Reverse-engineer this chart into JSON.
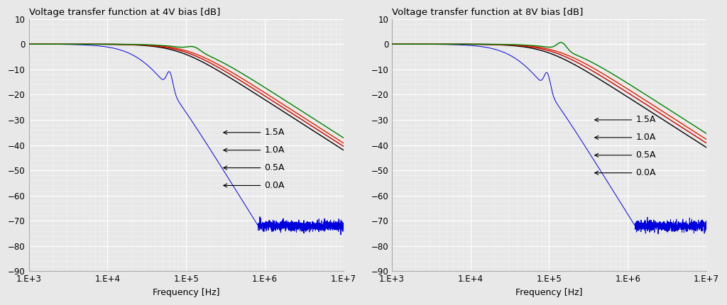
{
  "title_left": "Voltage transfer function at 4V bias [dB]",
  "title_right": "Voltage transfer function at 8V bias [dB]",
  "xlabel": "Frequency [Hz]",
  "bg_color": "#e8e8e8",
  "grid_color": "#ffffff",
  "plot4V": {
    "curves": [
      {
        "label": "0.0A",
        "color": "#000000",
        "fc": 80000,
        "order": 1.0,
        "floor": -63,
        "lw": 1.0
      },
      {
        "label": "0.5A",
        "color": "#cc0000",
        "fc": 95000,
        "order": 1.0,
        "floor": -65,
        "lw": 1.0
      },
      {
        "label": "1.0A",
        "color": "#dd2200",
        "fc": 110000,
        "order": 1.0,
        "floor": -66,
        "lw": 1.0
      },
      {
        "label": "1.5A",
        "color": "#008000",
        "fc": 140000,
        "order": 1.0,
        "floor": -68,
        "lw": 1.0
      }
    ],
    "blue": {
      "color": "#0000dd",
      "fc": 30000,
      "res_f": 62000,
      "res_gain": 7.0,
      "floor": -72,
      "lw": 0.7
    },
    "annotations": [
      {
        "text": "1.5A",
        "data_x": 550000,
        "data_y": -35
      },
      {
        "text": "1.0A",
        "data_x": 550000,
        "data_y": -42
      },
      {
        "text": "0.5A",
        "data_x": 550000,
        "data_y": -49
      },
      {
        "text": "0.0A",
        "data_x": 550000,
        "data_y": -56
      }
    ]
  },
  "plot8V": {
    "curves": [
      {
        "label": "0.0A",
        "color": "#000000",
        "fc": 90000,
        "order": 1.0,
        "floor": -63,
        "lw": 1.0
      },
      {
        "label": "0.5A",
        "color": "#cc0000",
        "fc": 110000,
        "order": 1.0,
        "floor": -65,
        "lw": 1.0
      },
      {
        "label": "1.0A",
        "color": "#dd2200",
        "fc": 130000,
        "order": 1.0,
        "floor": -66,
        "lw": 1.0
      },
      {
        "label": "1.5A",
        "color": "#008000",
        "fc": 170000,
        "order": 1.0,
        "floor": -68,
        "lw": 1.0
      }
    ],
    "blue": {
      "color": "#0000dd",
      "fc": 45000,
      "res_f": 95000,
      "res_gain": 7.0,
      "floor": -72,
      "lw": 0.7
    },
    "annotations": [
      {
        "text": "1.5A",
        "data_x": 700000,
        "data_y": -30
      },
      {
        "text": "1.0A",
        "data_x": 700000,
        "data_y": -37
      },
      {
        "text": "0.5A",
        "data_x": 700000,
        "data_y": -44
      },
      {
        "text": "0.0A",
        "data_x": 700000,
        "data_y": -51
      }
    ]
  },
  "ylim": [
    -90,
    10
  ],
  "xlim": [
    1000,
    10000000
  ]
}
